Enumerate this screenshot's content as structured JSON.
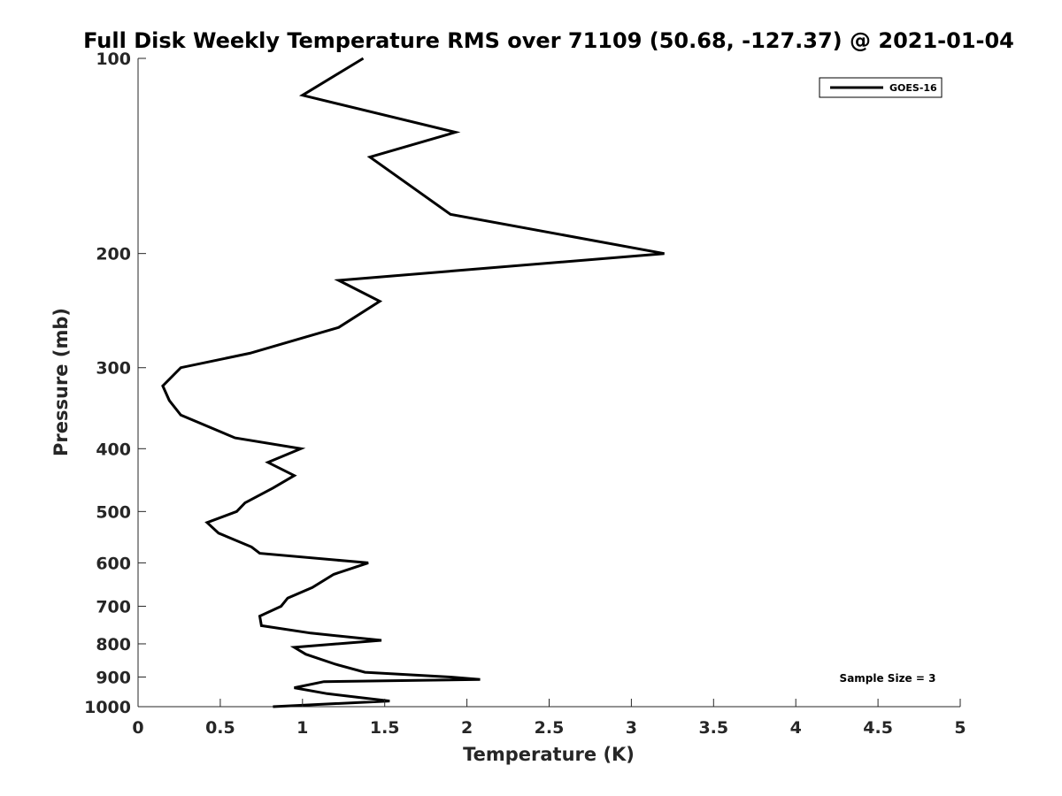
{
  "chart_data": {
    "type": "line",
    "title": "Full Disk Weekly Temperature RMS over 71109 (50.68, -127.37) @ 2021-01-04",
    "xlabel": "Temperature (K)",
    "ylabel": "Pressure (mb)",
    "xlim": [
      0,
      5
    ],
    "ylim": [
      100,
      1000
    ],
    "yscale": "log",
    "y_reversed": true,
    "xticks": [
      0,
      0.5,
      1,
      1.5,
      2,
      2.5,
      3,
      3.5,
      4,
      4.5,
      5
    ],
    "xtick_labels": [
      "0",
      "0.5",
      "1",
      "1.5",
      "2",
      "2.5",
      "3",
      "3.5",
      "4",
      "4.5",
      "5"
    ],
    "yticks": [
      100,
      200,
      300,
      400,
      500,
      600,
      700,
      800,
      900,
      1000
    ],
    "ytick_labels": [
      "100",
      "200",
      "300",
      "400",
      "500",
      "600",
      "700",
      "800",
      "900",
      "1000"
    ],
    "grid": false,
    "legend_position": "top-right",
    "annotation": "Sample Size = 3",
    "series": [
      {
        "name": "GOES-16",
        "color": "#000000",
        "x": [
          1.37,
          1.0,
          1.93,
          1.41,
          1.9,
          3.2,
          1.22,
          1.47,
          1.22,
          0.68,
          0.26,
          0.15,
          0.19,
          0.26,
          0.59,
          0.99,
          0.79,
          0.95,
          0.82,
          0.65,
          0.6,
          0.42,
          0.49,
          0.69,
          0.74,
          1.4,
          1.19,
          1.06,
          0.91,
          0.87,
          0.74,
          0.75,
          1.05,
          1.48,
          0.95,
          1.02,
          1.2,
          1.38,
          1.9,
          2.08,
          1.13,
          0.95,
          1.15,
          1.53,
          0.82
        ],
        "y": [
          100,
          114,
          130,
          142,
          174,
          200,
          220,
          237,
          260,
          285,
          300,
          320,
          337,
          355,
          385,
          400,
          420,
          440,
          460,
          485,
          500,
          520,
          540,
          567,
          580,
          600,
          625,
          655,
          680,
          700,
          725,
          750,
          770,
          790,
          810,
          830,
          860,
          885,
          900,
          908,
          915,
          935,
          955,
          980,
          1000
        ]
      }
    ]
  }
}
